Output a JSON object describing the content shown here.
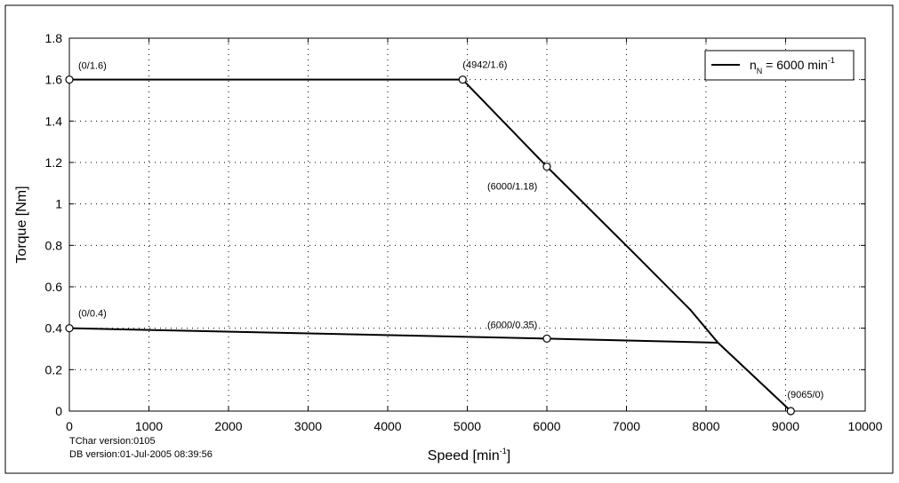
{
  "chart_data": {
    "type": "line",
    "title": "",
    "xlabel": {
      "base": "Speed [min",
      "sup": "-1",
      "close": "]"
    },
    "ylabel": "Torque [Nm]",
    "xlim": [
      0,
      10000
    ],
    "ylim": [
      0,
      1.8
    ],
    "xticks": [
      0,
      1000,
      2000,
      3000,
      4000,
      5000,
      6000,
      7000,
      8000,
      9000,
      10000
    ],
    "yticks": [
      0,
      0.2,
      0.4,
      0.6,
      0.8,
      1,
      1.2,
      1.4,
      1.6,
      1.8
    ],
    "xtick_labels": [
      "0",
      "1000",
      "2000",
      "3000",
      "4000",
      "5000",
      "6000",
      "7000",
      "8000",
      "9000",
      "10000"
    ],
    "ytick_labels": [
      "0",
      "0.2",
      "0.4",
      "0.6",
      "0.8",
      "1",
      "1.2",
      "1.4",
      "1.6",
      "1.8"
    ],
    "grid": true,
    "legend_position": "top-right",
    "legend": {
      "n": "n",
      "sub": "N",
      "eq": " = 6000 min",
      "sup": "-1"
    },
    "series": [
      {
        "segments": [
          [
            [
              0,
              1.6
            ],
            [
              4942,
              1.6
            ],
            [
              6000,
              1.18
            ],
            [
              7100,
              0.76
            ],
            [
              7800,
              0.49
            ],
            [
              8150,
              0.33
            ],
            [
              9065,
              0
            ]
          ],
          [
            [
              0,
              0.4
            ],
            [
              6000,
              0.35
            ],
            [
              8150,
              0.33
            ]
          ]
        ],
        "color": "#000000"
      }
    ],
    "annotations": [
      {
        "label": "(0/1.6)",
        "x": 0,
        "y": 1.6
      },
      {
        "label": "(4942/1.6)",
        "x": 4942,
        "y": 1.6
      },
      {
        "label": "(6000/1.18)",
        "x": 6000,
        "y": 1.18
      },
      {
        "label": "(0/0.4)",
        "x": 0,
        "y": 0.4
      },
      {
        "label": "(6000/0.35)",
        "x": 6000,
        "y": 0.35
      },
      {
        "label": "(9065/0)",
        "x": 9065,
        "y": 0
      }
    ]
  },
  "footer": {
    "tchar_version": "TChar version:0105",
    "db_version": "DB version:01-Jul-2005 08:39:56"
  }
}
